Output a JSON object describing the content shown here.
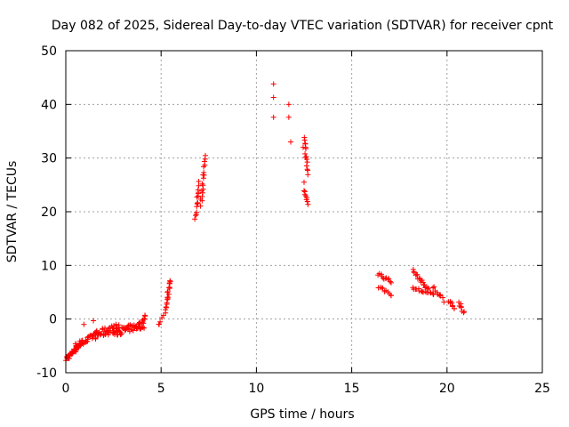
{
  "chart_data": {
    "type": "scatter",
    "title": "Day 082 of 2025, Sidereal Day-to-day VTEC variation (SDTVAR) for receiver cpnt",
    "xlabel": "GPS time / hours",
    "ylabel": "SDTVAR / TECUs",
    "xlim": [
      0,
      25
    ],
    "ylim": [
      -10,
      50
    ],
    "xticks": [
      "0",
      "5",
      "10",
      "15",
      "20",
      "25"
    ],
    "yticks": [
      "-10",
      "0",
      "10",
      "20",
      "30",
      "40",
      "50"
    ],
    "grid": true,
    "marker": "+",
    "color": "#ff0000",
    "series": [
      {
        "name": "SDTVAR",
        "segments": [
          {
            "x0": 0.0,
            "x1": 0.8,
            "y0": -7.5,
            "y1": -4.5,
            "n": 40,
            "spread": 1.0
          },
          {
            "x0": 0.5,
            "x1": 1.6,
            "y0": -5.0,
            "y1": -3.0,
            "n": 30,
            "spread": 1.0
          },
          {
            "x0": 1.5,
            "x1": 2.8,
            "y0": -3.0,
            "y1": -1.5,
            "n": 45,
            "spread": 1.6
          },
          {
            "x0": 2.6,
            "x1": 4.1,
            "y0": -2.5,
            "y1": -1.0,
            "n": 50,
            "spread": 1.4
          },
          {
            "x0": 3.8,
            "x1": 4.2,
            "y0": -1.5,
            "y1": 0.5,
            "n": 8,
            "spread": 0.6
          },
          {
            "x0": 4.9,
            "x1": 5.1,
            "y0": -1.0,
            "y1": 0.8,
            "n": 4,
            "spread": 0.4
          },
          {
            "x0": 5.2,
            "x1": 5.5,
            "y0": 1.5,
            "y1": 7.5,
            "n": 20,
            "spread": 0.8
          },
          {
            "x0": 6.8,
            "x1": 7.0,
            "y0": 18.5,
            "y1": 25.5,
            "n": 15,
            "spread": 1.0
          },
          {
            "x0": 7.1,
            "x1": 7.3,
            "y0": 21.5,
            "y1": 30.0,
            "n": 18,
            "spread": 1.0
          },
          {
            "x0": 12.5,
            "x1": 12.7,
            "y0": 34.0,
            "y1": 27.0,
            "n": 15,
            "spread": 0.8
          },
          {
            "x0": 12.5,
            "x1": 12.7,
            "y0": 24.0,
            "y1": 21.5,
            "n": 8,
            "spread": 0.4
          },
          {
            "x0": 16.4,
            "x1": 17.1,
            "y0": 8.5,
            "y1": 7.0,
            "n": 12,
            "spread": 0.8
          },
          {
            "x0": 16.4,
            "x1": 17.1,
            "y0": 6.0,
            "y1": 4.5,
            "n": 10,
            "spread": 0.6
          },
          {
            "x0": 18.2,
            "x1": 19.0,
            "y0": 9.0,
            "y1": 5.5,
            "n": 18,
            "spread": 0.6
          },
          {
            "x0": 18.2,
            "x1": 19.3,
            "y0": 5.8,
            "y1": 4.5,
            "n": 16,
            "spread": 0.6
          },
          {
            "x0": 19.3,
            "x1": 19.8,
            "y0": 6.0,
            "y1": 3.5,
            "n": 10,
            "spread": 0.8
          },
          {
            "x0": 20.1,
            "x1": 20.4,
            "y0": 3.5,
            "y1": 2.0,
            "n": 8,
            "spread": 0.6
          },
          {
            "x0": 20.6,
            "x1": 20.9,
            "y0": 3.0,
            "y1": 1.0,
            "n": 8,
            "spread": 0.8
          }
        ],
        "points": [
          [
            1.45,
            -0.3
          ],
          [
            0.95,
            -1.0
          ],
          [
            4.15,
            0.7
          ],
          [
            4.9,
            -1.0
          ],
          [
            10.9,
            43.8
          ],
          [
            10.9,
            41.3
          ],
          [
            10.9,
            37.6
          ],
          [
            11.7,
            40.0
          ],
          [
            11.7,
            37.6
          ],
          [
            11.8,
            33.0
          ],
          [
            12.45,
            32.0
          ],
          [
            12.5,
            25.5
          ]
        ]
      }
    ]
  }
}
